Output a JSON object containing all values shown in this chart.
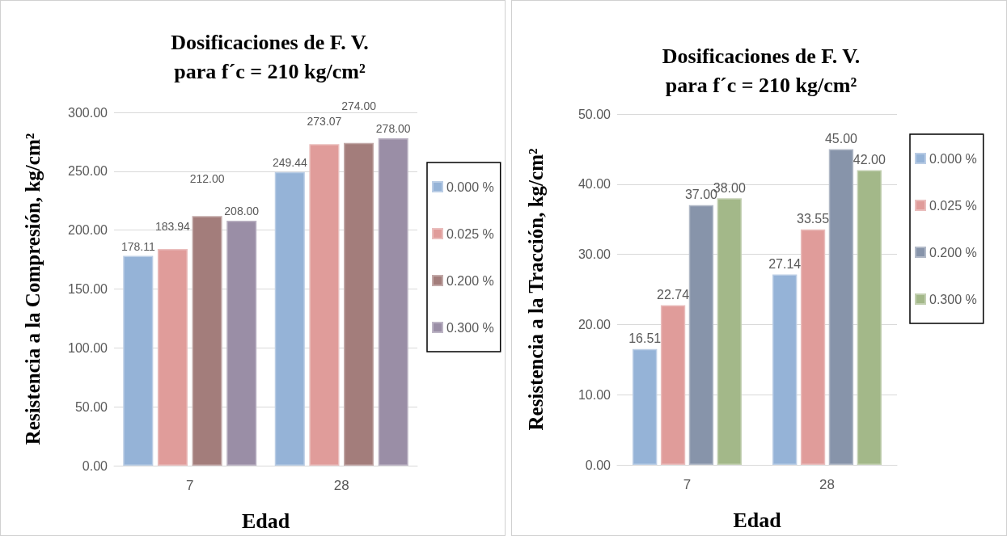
{
  "chart_data": [
    {
      "type": "bar",
      "title": "Dosificaciones de F. V.\npara f´c = 210 kg/cm²",
      "xlabel": "Edad",
      "ylabel": "Resistencia a la Compresión, kg/cm²",
      "categories": [
        "7",
        "28"
      ],
      "series": [
        {
          "name": "0.000 %",
          "color": "#95b3d7",
          "values": [
            178.11,
            249.44
          ],
          "value_labels": [
            "178.11",
            "249.44"
          ]
        },
        {
          "name": "0.025 %",
          "color": "#e09c9a",
          "values": [
            183.94,
            273.07
          ],
          "value_labels": [
            "183.94",
            "273.07"
          ]
        },
        {
          "name": "0.200 %",
          "color": "#a37d7b",
          "values": [
            212.0,
            274.0
          ],
          "value_labels": [
            "212.00",
            "274.00"
          ]
        },
        {
          "name": "0.300 %",
          "color": "#9a8ea6",
          "values": [
            208.0,
            278.0
          ],
          "value_labels": [
            "208.00",
            "278.00"
          ]
        }
      ],
      "ylim": [
        0,
        300
      ],
      "yticks": [
        {
          "value": 0,
          "label": "0.00"
        },
        {
          "value": 50,
          "label": "50.00"
        },
        {
          "value": 100,
          "label": "100.00"
        },
        {
          "value": 150,
          "label": "150.00"
        },
        {
          "value": 200,
          "label": "200.00"
        },
        {
          "value": 250,
          "label": "250.00"
        },
        {
          "value": 300,
          "label": "300.00"
        }
      ],
      "grid": "y",
      "legend": "right"
    },
    {
      "type": "bar",
      "title": "Dosificaciones de F. V.\npara f´c = 210 kg/cm²",
      "xlabel": "Edad",
      "ylabel": "Resistencia a la Tracción, kg/cm²",
      "categories": [
        "7",
        "28"
      ],
      "series": [
        {
          "name": "0.000 %",
          "color": "#95b3d7",
          "values": [
            16.51,
            27.14
          ],
          "value_labels": [
            "16.51",
            "27.14"
          ]
        },
        {
          "name": "0.025 %",
          "color": "#e09c9a",
          "values": [
            22.74,
            33.55
          ],
          "value_labels": [
            "22.74",
            "33.55"
          ]
        },
        {
          "name": "0.200 %",
          "color": "#8794aa",
          "values": [
            37.0,
            45.0
          ],
          "value_labels": [
            "37.00",
            "45.00"
          ]
        },
        {
          "name": "0.300 %",
          "color": "#a3b889",
          "values": [
            38.0,
            42.0
          ],
          "value_labels": [
            "38.00",
            "42.00"
          ]
        }
      ],
      "ylim": [
        0,
        50
      ],
      "yticks": [
        {
          "value": 0,
          "label": "0.00"
        },
        {
          "value": 10,
          "label": "10.00"
        },
        {
          "value": 20,
          "label": "20.00"
        },
        {
          "value": 30,
          "label": "30.00"
        },
        {
          "value": 40,
          "label": "40.00"
        },
        {
          "value": 50,
          "label": "50.00"
        }
      ],
      "grid": "y",
      "legend": "right"
    }
  ]
}
